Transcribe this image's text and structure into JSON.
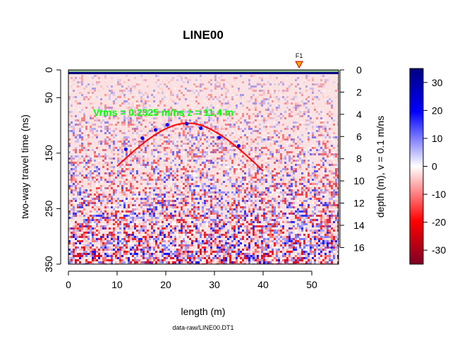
{
  "chart_data": {
    "type": "heatmap",
    "title": "LINE00",
    "xlabel": "length (m)",
    "ylabel_left": "two-way travel time (ns)",
    "ylabel_right": "depth (m),  v = 0.1 m/ns",
    "caption": "data-raw/LINE00.DT1",
    "annotation": "Vrms = 0.2325 m/ns  z = 11.4 m",
    "annotation_color": "#00ff00",
    "fiducial": {
      "label": "F1",
      "x": 47.4,
      "color": "#ffa500"
    },
    "xlim": [
      0,
      55.5
    ],
    "ylim_time": [
      0,
      350
    ],
    "ylim_depth": [
      0,
      17.5
    ],
    "x_ticks": [
      "0",
      "10",
      "20",
      "30",
      "40",
      "50"
    ],
    "y_ticks_time": [
      "0",
      "50",
      "150",
      "250",
      "350"
    ],
    "y_ticks_depth": [
      "0",
      "2",
      "4",
      "6",
      "8",
      "10",
      "12",
      "14",
      "16"
    ],
    "colorbar": {
      "range": [
        -35,
        35
      ],
      "ticks": [
        "30",
        "20",
        "10",
        "0",
        "-10",
        "-20",
        "-30"
      ],
      "colors": [
        "#7f0026",
        "#ff0000",
        "#ffffff",
        "#0000ff",
        "#000080"
      ]
    },
    "hyperbola_points": {
      "x": [
        11.8,
        15.2,
        17.9,
        20.3,
        24.3,
        27.2,
        31.0,
        35.0
      ],
      "t": [
        143,
        123,
        108,
        99,
        97,
        105,
        122,
        137
      ]
    },
    "fit_curve": {
      "color": "#ff0000",
      "apex_x": 24.5,
      "apex_t": 96,
      "x_range": [
        10,
        40
      ]
    }
  }
}
